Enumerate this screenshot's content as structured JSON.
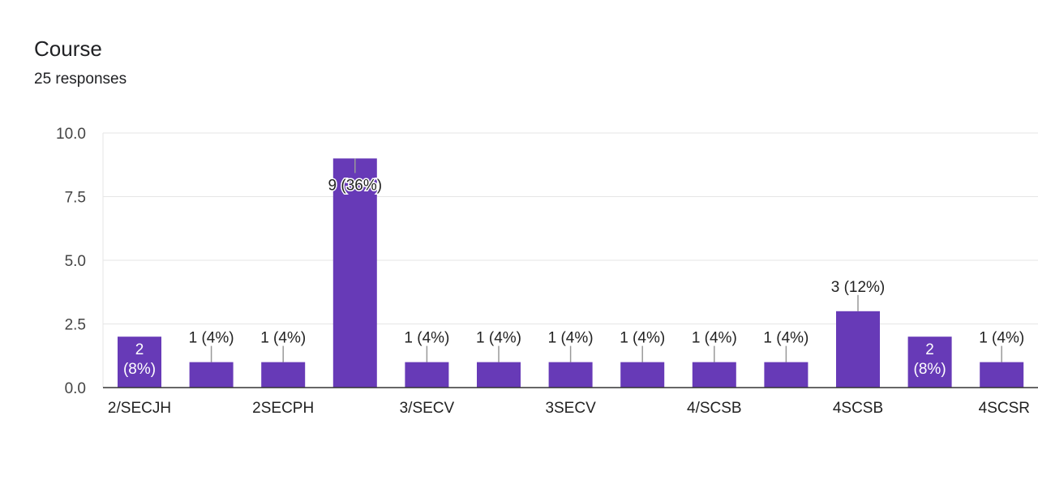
{
  "question": {
    "title": "Course",
    "responses": "25 responses"
  },
  "colors": {
    "bar": "#673ab7",
    "grid": "#e6e6e6",
    "axis": "#333333",
    "leader": "#999999"
  },
  "chart_data": {
    "type": "bar",
    "categories": [
      "2/SECJH",
      "",
      "2SECPH",
      "",
      "3/SECV",
      "",
      "3SECV",
      "",
      "4/SCSB",
      "",
      "4SCSB",
      "",
      "4SCSR"
    ],
    "values": [
      2,
      1,
      1,
      9,
      1,
      1,
      1,
      1,
      1,
      1,
      3,
      2,
      1
    ],
    "data_labels": [
      "2 (8%)",
      "1 (4%)",
      "1 (4%)",
      "9 (36%)",
      "1 (4%)",
      "1 (4%)",
      "1 (4%)",
      "1 (4%)",
      "1 (4%)",
      "1 (4%)",
      "3 (12%)",
      "2 (8%)",
      "1 (4%)"
    ],
    "y_ticks": [
      "0.0",
      "2.5",
      "5.0",
      "7.5",
      "10.0"
    ],
    "ylim": [
      0,
      10
    ],
    "grid": true,
    "legend": "none"
  }
}
